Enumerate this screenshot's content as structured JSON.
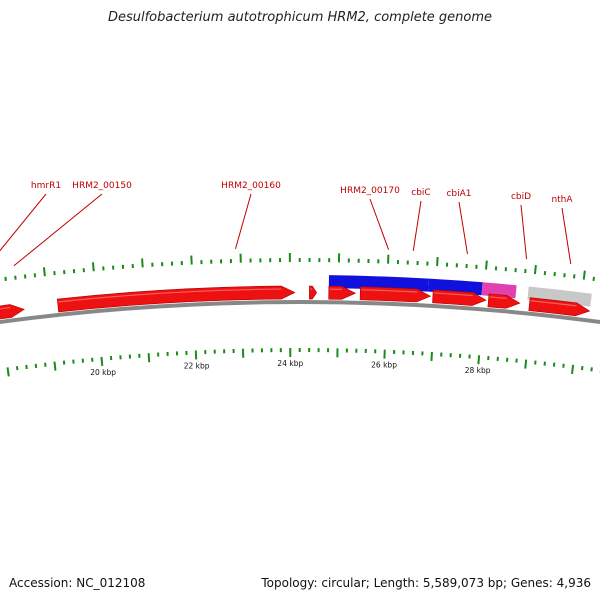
{
  "title": "Desulfobacterium autotrophicum HRM2, complete genome",
  "footer": {
    "accession": "Accession: NC_012108",
    "summary": "Topology: circular; Length: 5,589,073 bp; Genes: 4,936"
  },
  "colors": {
    "gene": "#ee1111",
    "blue_feature": "#1111dd",
    "magenta_feature": "#e040b0",
    "grey_feature": "#c8c8c8",
    "tick": "#1a8a1a",
    "backbone": "#888888",
    "label": "#c00000"
  },
  "gene_labels": [
    {
      "text": "hmrR1",
      "kb": 17.8
    },
    {
      "text": "HRM2_00150",
      "kb": 18.4
    },
    {
      "text": "HRM2_00160",
      "kb": 22.9
    },
    {
      "text": "HRM2_00170",
      "kb": 26.0
    },
    {
      "text": "cbiC",
      "kb": 26.5
    },
    {
      "text": "cbiA1",
      "kb": 27.6
    },
    {
      "text": "cbiD",
      "kb": 28.8
    },
    {
      "text": "nthA",
      "kb": 29.7
    }
  ],
  "kbp_labels": [
    {
      "text": "20 kbp",
      "kb": 20
    },
    {
      "text": "22 kbp",
      "kb": 22
    },
    {
      "text": "24 kbp",
      "kb": 24
    },
    {
      "text": "26 kbp",
      "kb": 26
    },
    {
      "text": "28 kbp",
      "kb": 28
    }
  ],
  "genes": [
    {
      "start": 16.3,
      "end": 17.2
    },
    {
      "start": 17.25,
      "end": 17.4
    },
    {
      "start": 17.45,
      "end": 18.5
    },
    {
      "start": 19.2,
      "end": 24.1
    },
    {
      "start": 24.4,
      "end": 24.55
    },
    {
      "start": 24.8,
      "end": 25.35
    },
    {
      "start": 25.45,
      "end": 26.9
    },
    {
      "start": 26.95,
      "end": 28.05
    },
    {
      "start": 28.1,
      "end": 28.75
    },
    {
      "start": 28.95,
      "end": 30.2
    }
  ],
  "outer_features": [
    {
      "start": 24.8,
      "end": 26.85,
      "color": "blue_feature"
    },
    {
      "start": 26.85,
      "end": 27.95,
      "color": "blue_feature"
    },
    {
      "start": 27.95,
      "end": 28.65,
      "color": "magenta_feature"
    },
    {
      "start": 28.9,
      "end": 30.2,
      "color": "grey_feature"
    }
  ]
}
